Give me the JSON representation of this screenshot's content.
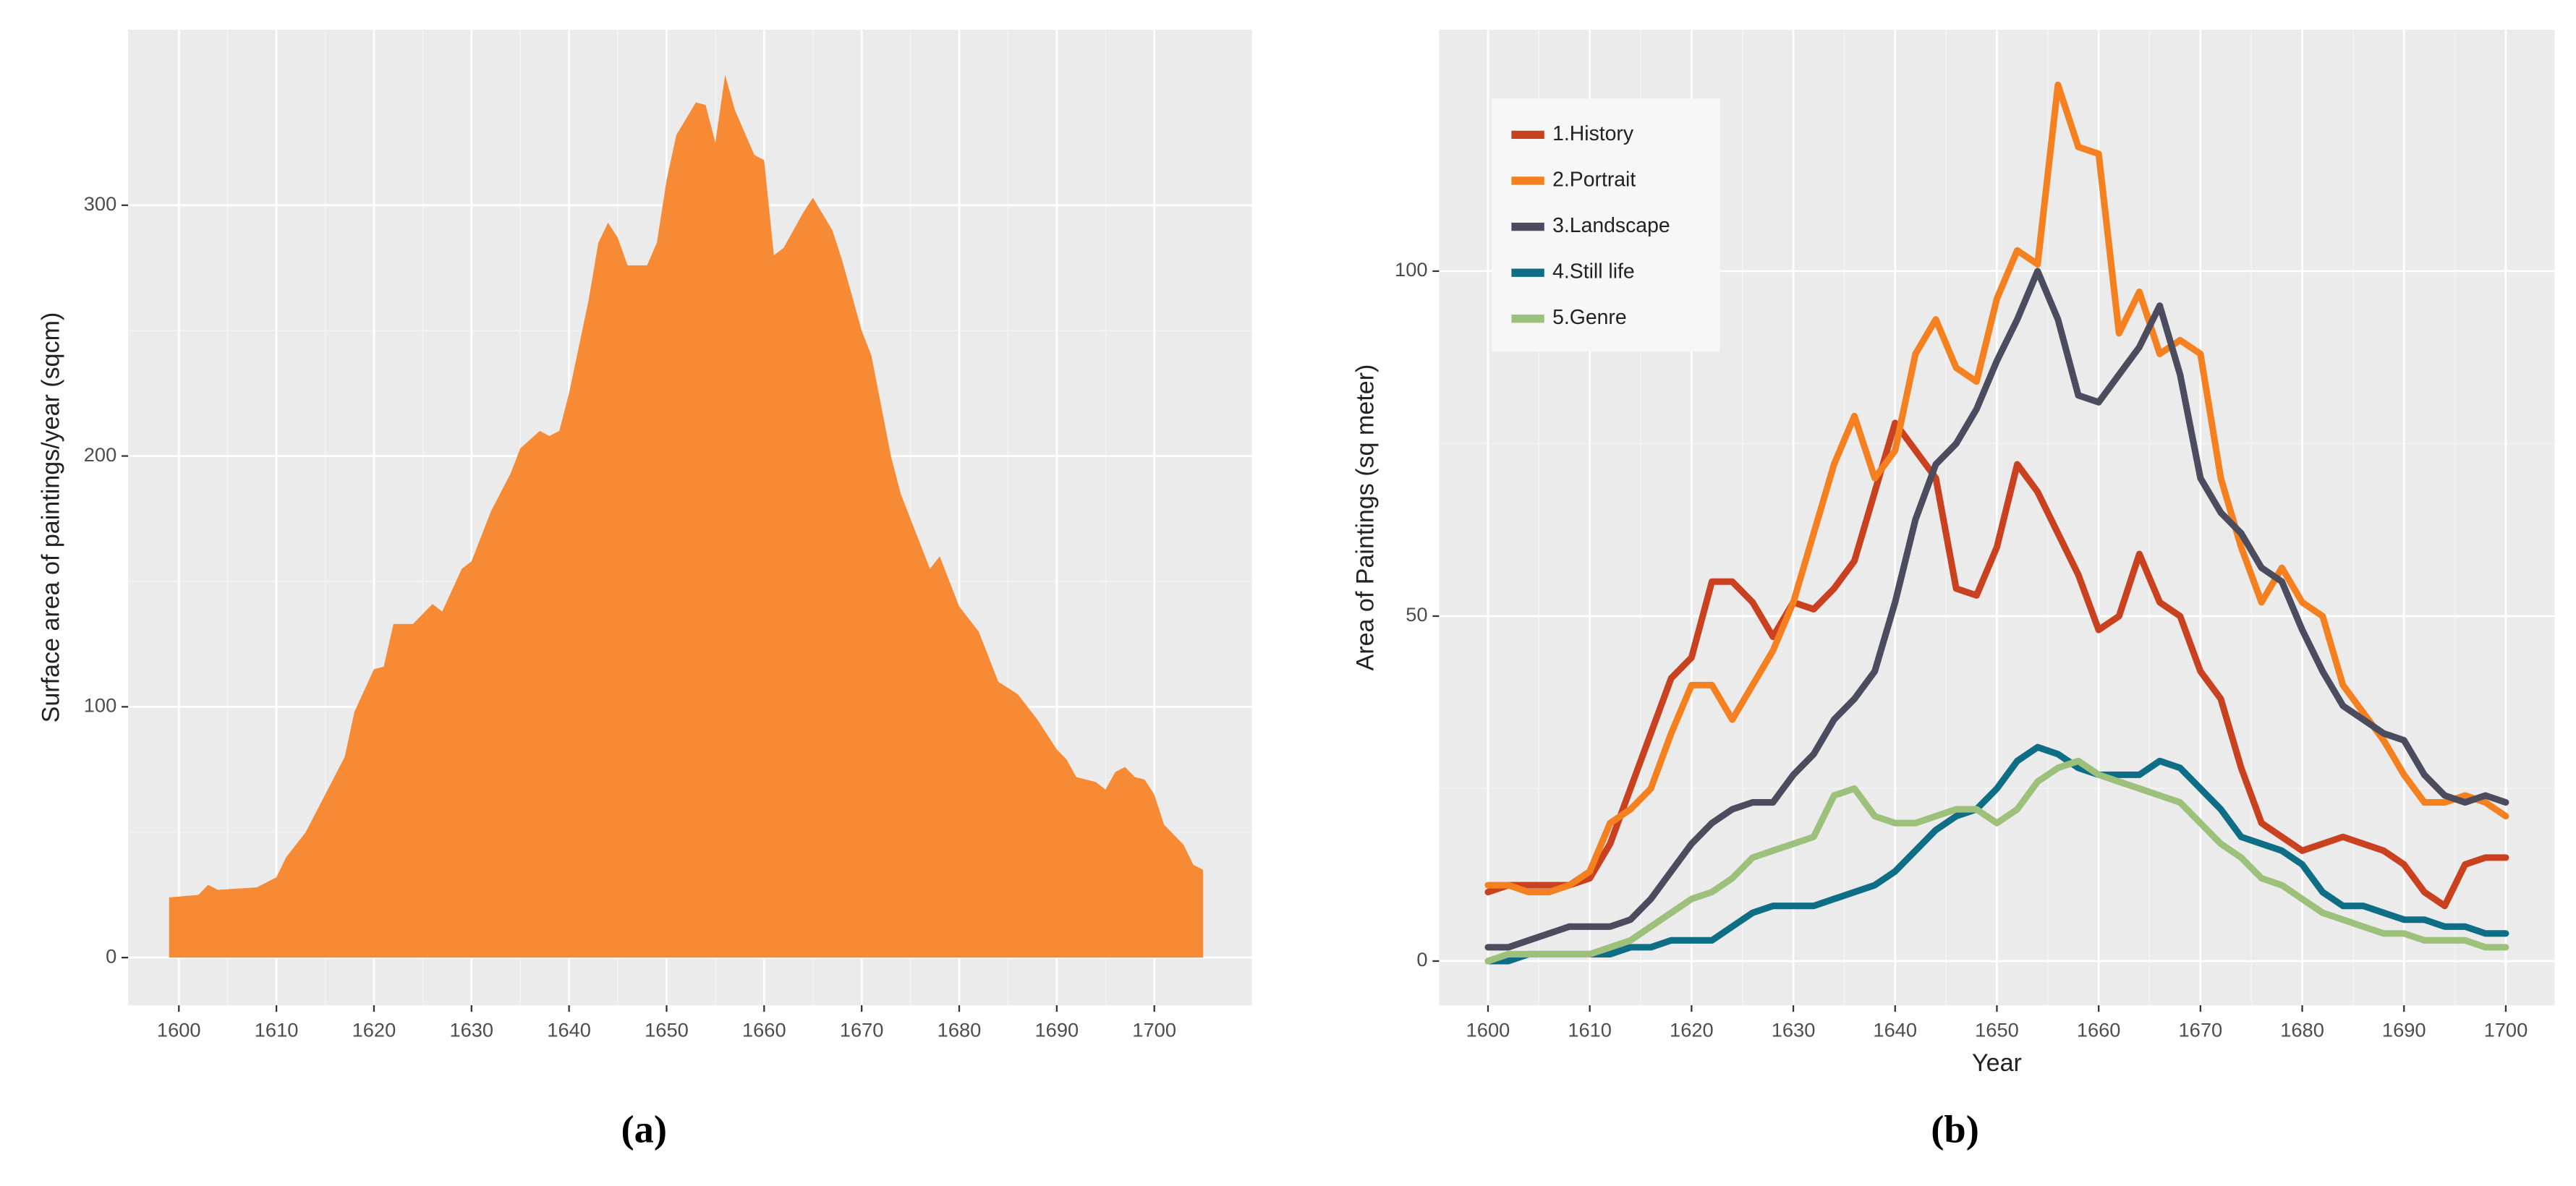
{
  "chart_data": [
    {
      "type": "area",
      "caption": "(a)",
      "ylabel": "Surface area of paintings/year (sqcm)",
      "color": "#f78a35",
      "x": [
        1599,
        1602,
        1603,
        1604,
        1608,
        1610,
        1611,
        1613,
        1615,
        1617,
        1618,
        1620,
        1621,
        1622,
        1624,
        1626,
        1627,
        1629,
        1630,
        1632,
        1634,
        1635,
        1637,
        1638,
        1639,
        1640,
        1642,
        1643,
        1644,
        1645,
        1646,
        1648,
        1649,
        1650,
        1651,
        1653,
        1654,
        1655,
        1656,
        1657,
        1659,
        1660,
        1661,
        1662,
        1664,
        1665,
        1667,
        1668,
        1670,
        1671,
        1673,
        1674,
        1676,
        1677,
        1678,
        1680,
        1682,
        1684,
        1686,
        1688,
        1690,
        1691,
        1692,
        1694,
        1695,
        1696,
        1697,
        1698,
        1699,
        1700,
        1701,
        1702,
        1703,
        1704,
        1705
      ],
      "values": [
        24,
        25,
        29,
        27,
        28,
        32,
        40,
        50,
        65,
        80,
        98,
        115,
        116,
        133,
        133,
        141,
        138,
        155,
        158,
        178,
        193,
        203,
        210,
        208,
        210,
        225,
        262,
        285,
        293,
        287,
        276,
        276,
        285,
        310,
        328,
        341,
        340,
        325,
        352,
        338,
        320,
        318,
        280,
        283,
        297,
        303,
        290,
        278,
        250,
        240,
        200,
        185,
        165,
        155,
        160,
        140,
        130,
        110,
        105,
        95,
        83,
        79,
        72,
        70,
        67,
        74,
        76,
        72,
        71,
        65,
        53,
        49,
        45,
        37,
        35
      ],
      "xlim": [
        1594.8,
        1710
      ],
      "ylim": [
        -19,
        370
      ],
      "xticks": [
        1600,
        1610,
        1620,
        1630,
        1640,
        1650,
        1660,
        1670,
        1680,
        1690,
        1700
      ],
      "yticks": [
        0,
        100,
        200,
        300
      ],
      "grid": true
    },
    {
      "type": "line",
      "caption": "(b)",
      "xlabel": "Year",
      "ylabel": "Area of Paintings (sq meter)",
      "legend": "top-left",
      "x": [
        1600,
        1602,
        1604,
        1606,
        1608,
        1610,
        1612,
        1614,
        1616,
        1618,
        1620,
        1622,
        1624,
        1626,
        1628,
        1630,
        1632,
        1634,
        1636,
        1638,
        1640,
        1642,
        1644,
        1646,
        1648,
        1650,
        1652,
        1654,
        1656,
        1658,
        1660,
        1662,
        1664,
        1666,
        1668,
        1670,
        1672,
        1674,
        1676,
        1678,
        1680,
        1682,
        1684,
        1686,
        1688,
        1690,
        1692,
        1694,
        1696,
        1698,
        1700
      ],
      "series": [
        {
          "name": "1.History",
          "color": "#c9411f",
          "values": [
            10,
            11,
            11,
            11,
            11,
            12,
            17,
            25,
            33,
            41,
            44,
            55,
            55,
            52,
            47,
            52,
            51,
            54,
            58,
            68,
            78,
            74,
            70,
            54,
            53,
            60,
            72,
            68,
            62,
            56,
            48,
            50,
            59,
            52,
            50,
            42,
            38,
            28,
            20,
            18,
            16,
            17,
            18,
            17,
            16,
            14,
            10,
            8,
            14,
            15,
            15
          ]
        },
        {
          "name": "2.Portrait",
          "color": "#f5801f",
          "values": [
            11,
            11,
            10,
            10,
            11,
            13,
            20,
            22,
            25,
            33,
            40,
            40,
            35,
            40,
            45,
            52,
            62,
            72,
            79,
            70,
            74,
            88,
            93,
            86,
            84,
            96,
            103,
            101,
            127,
            118,
            117,
            91,
            97,
            88,
            90,
            88,
            70,
            60,
            52,
            57,
            52,
            50,
            40,
            36,
            32,
            27,
            23,
            23,
            24,
            23,
            21
          ]
        },
        {
          "name": "3.Landscape",
          "color": "#4b4c5e",
          "values": [
            2,
            2,
            3,
            4,
            5,
            5,
            5,
            6,
            9,
            13,
            17,
            20,
            22,
            23,
            23,
            27,
            30,
            35,
            38,
            42,
            52,
            64,
            72,
            75,
            80,
            87,
            93,
            100,
            93,
            82,
            81,
            85,
            89,
            95,
            85,
            70,
            65,
            62,
            57,
            55,
            48,
            42,
            37,
            35,
            33,
            32,
            27,
            24,
            23,
            24,
            23
          ]
        },
        {
          "name": "4.Still life",
          "color": "#0e6e85",
          "values": [
            0,
            0,
            1,
            1,
            1,
            1,
            1,
            2,
            2,
            3,
            3,
            3,
            5,
            7,
            8,
            8,
            8,
            9,
            10,
            11,
            13,
            16,
            19,
            21,
            22,
            25,
            29,
            31,
            30,
            28,
            27,
            27,
            27,
            29,
            28,
            25,
            22,
            18,
            17,
            16,
            14,
            10,
            8,
            8,
            7,
            6,
            6,
            5,
            5,
            4,
            4
          ]
        },
        {
          "name": "5.Genre",
          "color": "#9dc17b",
          "values": [
            0,
            1,
            1,
            1,
            1,
            1,
            2,
            3,
            5,
            7,
            9,
            10,
            12,
            15,
            16,
            17,
            18,
            24,
            25,
            21,
            20,
            20,
            21,
            22,
            22,
            20,
            22,
            26,
            28,
            29,
            27,
            26,
            25,
            24,
            23,
            20,
            17,
            15,
            12,
            11,
            9,
            7,
            6,
            5,
            4,
            4,
            3,
            3,
            3,
            2,
            2
          ]
        }
      ],
      "xlim": [
        1595.2,
        1704.8
      ],
      "ylim": [
        -6.4,
        135
      ],
      "xticks": [
        1600,
        1610,
        1620,
        1630,
        1640,
        1650,
        1660,
        1670,
        1680,
        1690,
        1700
      ],
      "yticks": [
        0,
        50,
        100
      ],
      "grid": true
    }
  ]
}
